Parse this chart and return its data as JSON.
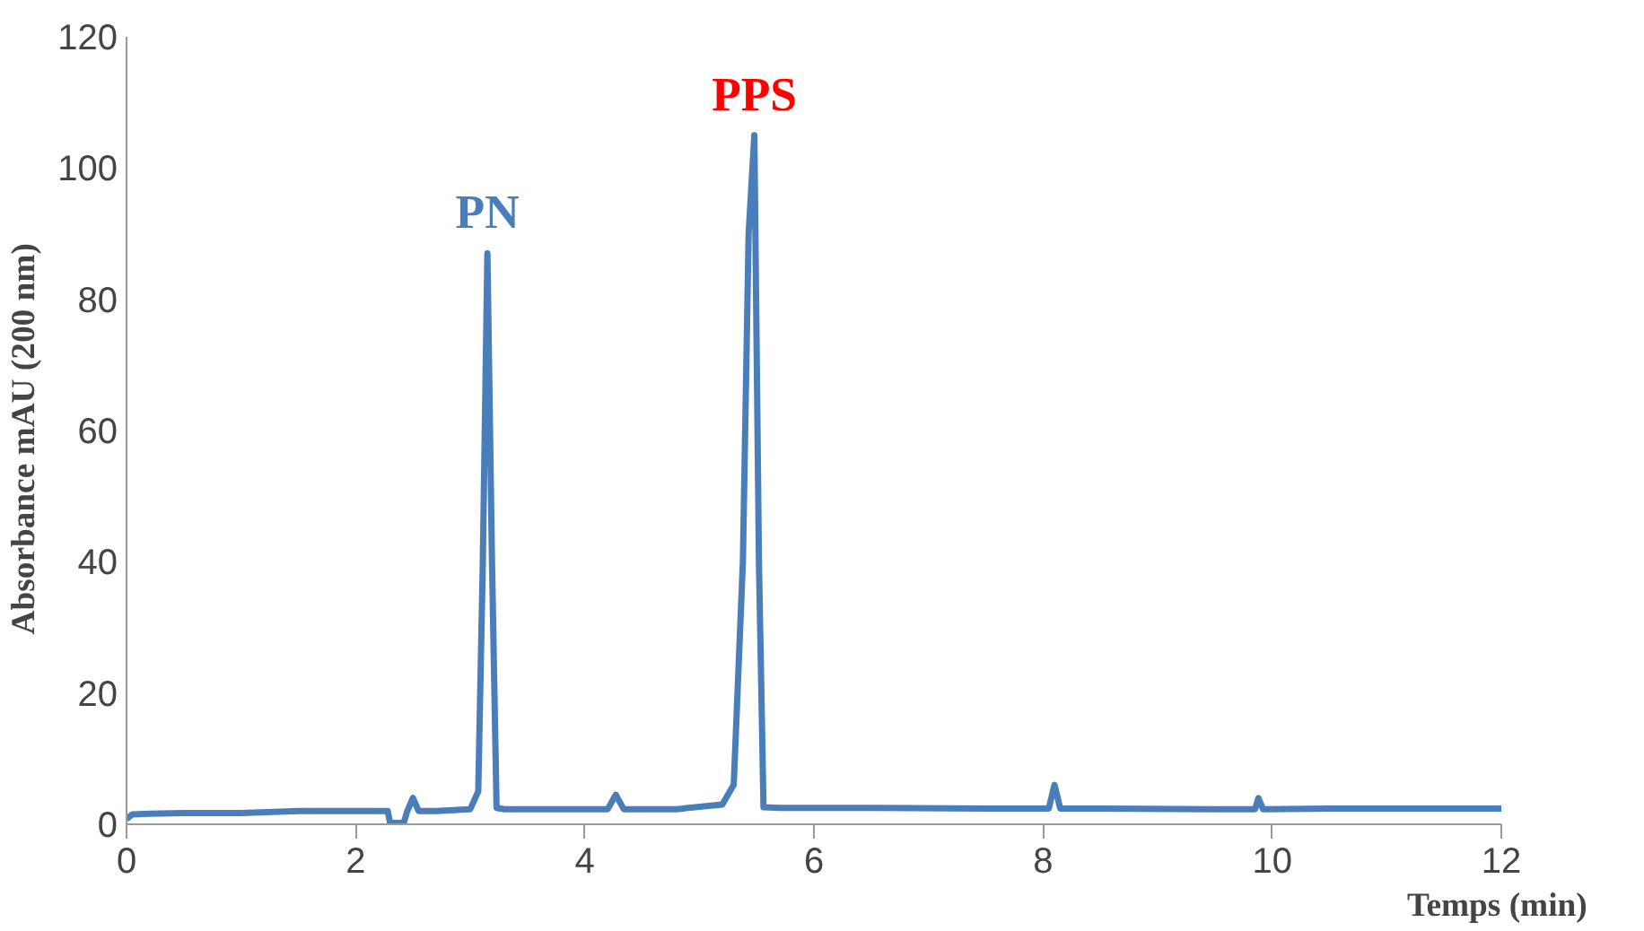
{
  "chart_data": {
    "type": "line",
    "xlabel": "Temps  (min)",
    "ylabel": "Absorbance  mAU  (200 nm)",
    "xlim": [
      0,
      12
    ],
    "ylim": [
      0,
      120
    ],
    "xticks": [
      0,
      2,
      4,
      6,
      8,
      10,
      12
    ],
    "yticks": [
      0,
      20,
      40,
      60,
      80,
      100,
      120
    ],
    "grid": false,
    "marker": "none",
    "line_style": "solid",
    "series": [
      {
        "color": "#4a7ebb",
        "x": [
          0,
          0.05,
          0.2,
          0.5,
          1.0,
          1.5,
          2.0,
          2.28,
          2.3,
          2.42,
          2.45,
          2.5,
          2.55,
          2.7,
          3.0,
          3.07,
          3.11,
          3.15,
          3.19,
          3.23,
          3.3,
          3.8,
          4.2,
          4.27,
          4.34,
          4.8,
          5.2,
          5.3,
          5.38,
          5.43,
          5.48,
          5.52,
          5.56,
          5.7,
          6.5,
          7.5,
          8.05,
          8.1,
          8.15,
          8.5,
          9.5,
          9.85,
          9.88,
          9.92,
          10.5,
          11.5,
          12
        ],
        "values": [
          0.8,
          1.5,
          1.6,
          1.7,
          1.7,
          2.0,
          2.0,
          2.0,
          0.2,
          0.2,
          2.0,
          4.0,
          2.0,
          2.0,
          2.3,
          5,
          40,
          87,
          40,
          2.5,
          2.3,
          2.3,
          2.3,
          4.5,
          2.3,
          2.3,
          3.0,
          6,
          40,
          90,
          105,
          40,
          2.6,
          2.5,
          2.5,
          2.4,
          2.4,
          6,
          2.4,
          2.4,
          2.3,
          2.3,
          4,
          2.3,
          2.4,
          2.4,
          2.4
        ]
      }
    ],
    "annotations": [
      {
        "text": "PN",
        "x": 3.15,
        "y": 87
      },
      {
        "text": "PPS",
        "x": 5.48,
        "y": 105
      }
    ]
  }
}
